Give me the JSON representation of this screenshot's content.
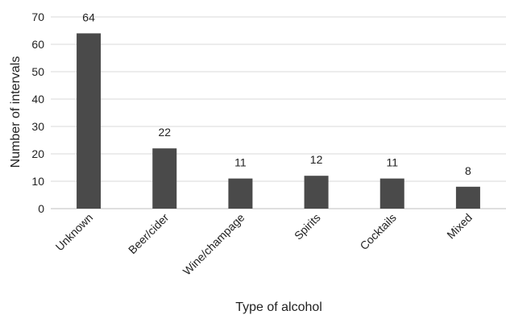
{
  "chart_data": {
    "type": "bar",
    "categories": [
      "Unknown",
      "Beer/cider",
      "Wine/champage",
      "Spirits",
      "Cocktails",
      "Mixed"
    ],
    "values": [
      64,
      22,
      11,
      12,
      11,
      8
    ],
    "title": "",
    "xlabel": "Type of alcohol",
    "ylabel": "Number of intervals",
    "ylim": [
      0,
      70
    ],
    "yticks": [
      0,
      10,
      20,
      30,
      40,
      50,
      60,
      70
    ],
    "grid": true,
    "data_labels": true,
    "bar_color": "#4a4a4a",
    "grid_color": "#d9d9d9"
  }
}
